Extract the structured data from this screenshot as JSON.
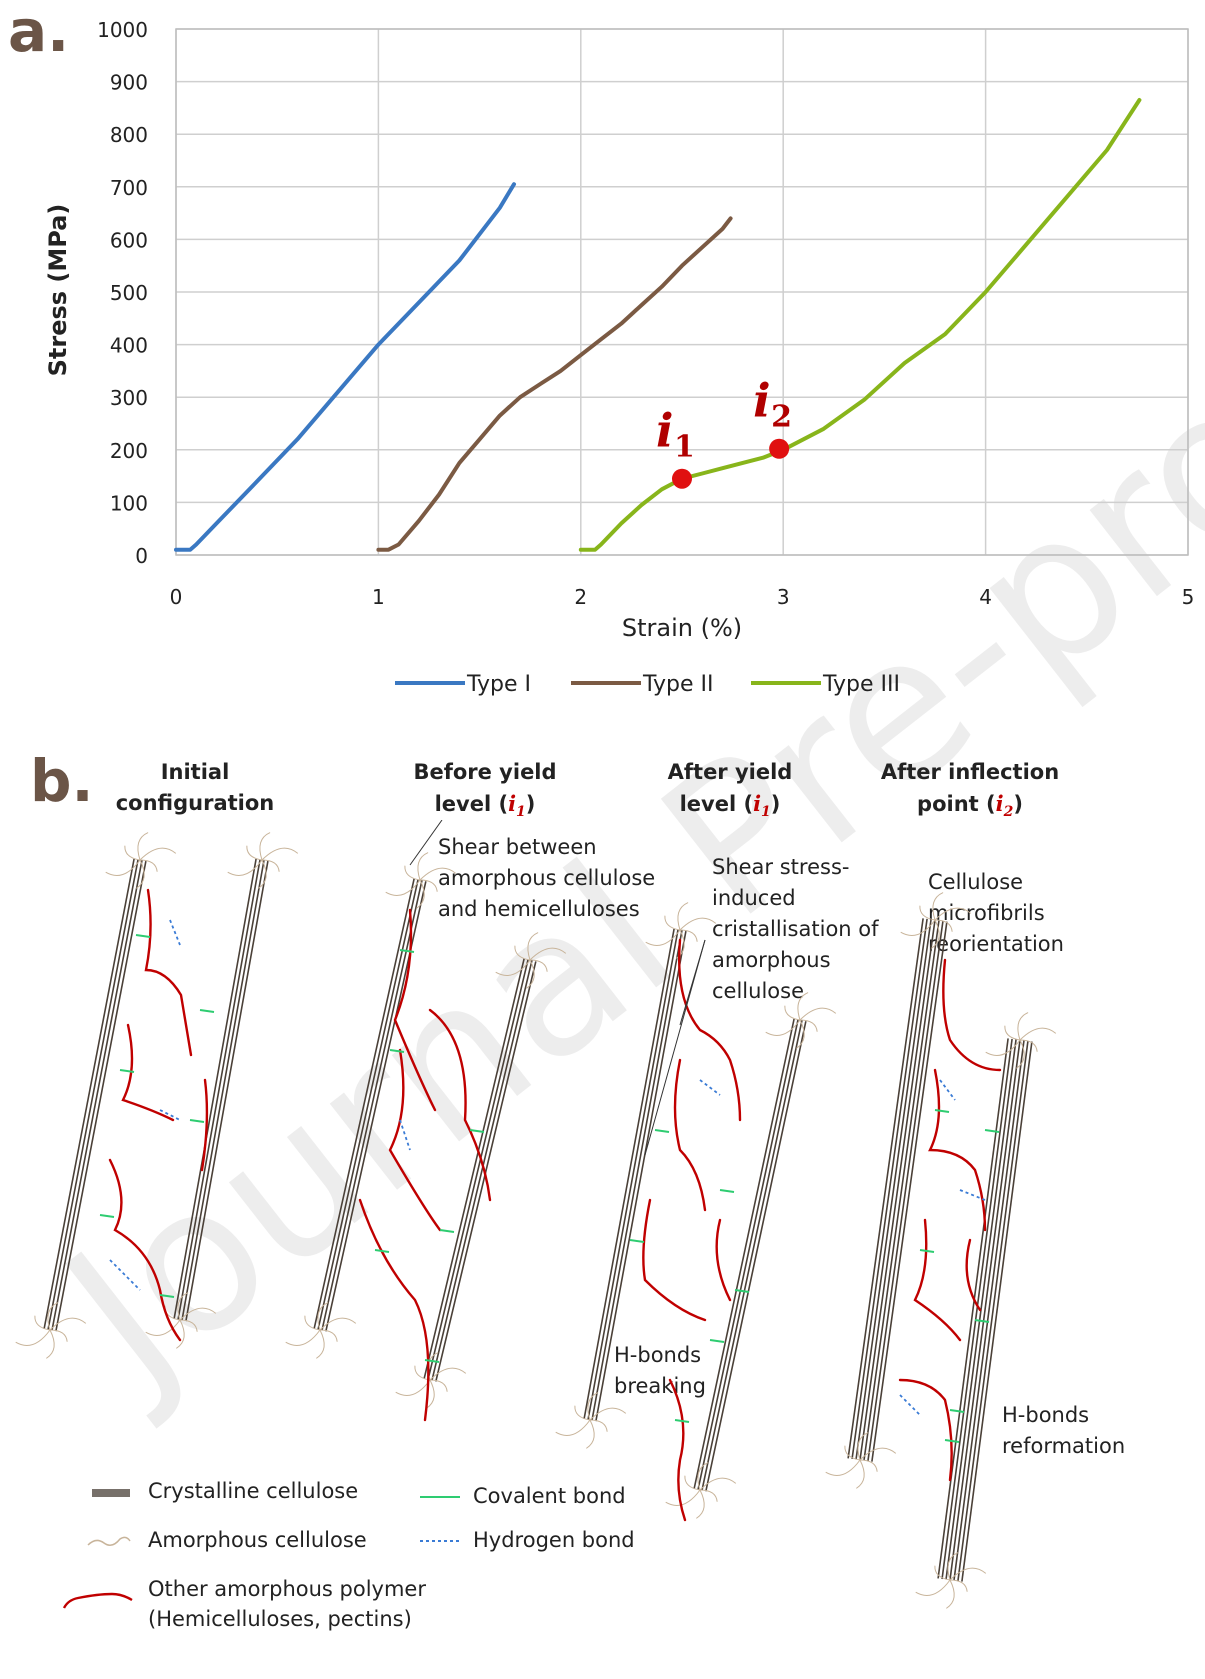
{
  "panel_a_letter": "a.",
  "panel_b_letter": "b.",
  "chart_data": {
    "type": "line",
    "title": "",
    "xlabel": "Strain (%)",
    "ylabel": "Stress (MPa)",
    "xlim": [
      0,
      5
    ],
    "ylim": [
      0,
      1000
    ],
    "x_ticks": [
      "0",
      "1",
      "2",
      "3",
      "4",
      "5"
    ],
    "y_ticks": [
      "0",
      "100",
      "200",
      "300",
      "400",
      "500",
      "600",
      "700",
      "800",
      "900",
      "1000"
    ],
    "grid": true,
    "legend_position": "bottom",
    "series": [
      {
        "name": "Type I",
        "color": "#3a78c2",
        "x": [
          0,
          0.07,
          0.1,
          0.2,
          0.4,
          0.6,
          0.8,
          1.0,
          1.2,
          1.4,
          1.6,
          1.67
        ],
        "y": [
          10,
          10,
          20,
          60,
          140,
          220,
          310,
          400,
          480,
          560,
          660,
          705
        ]
      },
      {
        "name": "Type II",
        "color": "#7b5a43",
        "x": [
          1.0,
          1.05,
          1.1,
          1.2,
          1.3,
          1.4,
          1.5,
          1.6,
          1.7,
          1.8,
          1.9,
          2.0,
          2.1,
          2.2,
          2.3,
          2.4,
          2.5,
          2.6,
          2.7,
          2.74
        ],
        "y": [
          10,
          10,
          20,
          65,
          115,
          175,
          220,
          265,
          300,
          325,
          350,
          380,
          410,
          440,
          475,
          510,
          550,
          585,
          620,
          640
        ]
      },
      {
        "name": "Type III",
        "color": "#88b51b",
        "x": [
          2.0,
          2.07,
          2.1,
          2.2,
          2.3,
          2.4,
          2.5,
          2.6,
          2.7,
          2.8,
          2.9,
          3.0,
          3.2,
          3.4,
          3.6,
          3.8,
          4.0,
          4.2,
          4.4,
          4.6,
          4.76
        ],
        "y": [
          10,
          10,
          20,
          60,
          95,
          125,
          145,
          155,
          165,
          175,
          185,
          200,
          240,
          295,
          365,
          420,
          500,
          590,
          680,
          770,
          865
        ]
      }
    ],
    "annotations": [
      {
        "label": "i",
        "subscript": "1",
        "x": 2.5,
        "y": 145,
        "color": "#e01010"
      },
      {
        "label": "i",
        "subscript": "2",
        "x": 2.98,
        "y": 202,
        "color": "#e01010"
      }
    ]
  },
  "stages": [
    {
      "line1": "Initial",
      "line2": "configuration",
      "symbol": "",
      "sub": "",
      "suffix": ""
    },
    {
      "line1": "Before yield",
      "line2": "level (",
      "symbol": "i",
      "sub": "1",
      "suffix": ")"
    },
    {
      "line1": "After yield",
      "line2": "level (",
      "symbol": "i",
      "sub": "1",
      "suffix": ")"
    },
    {
      "line1": "After inflection",
      "line2": "point (",
      "symbol": "i",
      "sub": "2",
      "suffix": ")"
    }
  ],
  "notes": {
    "shear": [
      "Shear between",
      "amorphous cellulose",
      "and hemicelluloses"
    ],
    "crystal": [
      "Shear stress-",
      "induced",
      "cristallisation of",
      "amorphous",
      "cellulose"
    ],
    "reorient": [
      "Cellulose",
      "microfibrils",
      "reorientation"
    ],
    "hbreak": [
      "H-bonds",
      "breaking"
    ],
    "hreform": [
      "H-bonds",
      "reformation"
    ]
  },
  "legend_b": {
    "crystalline": "Crystalline cellulose",
    "amorphous": "Amorphous cellulose",
    "other_1": "Other amorphous polymer",
    "other_2": "(Hemicelluloses, pectins)",
    "covalent": "Covalent bond",
    "hydrogen": "Hydrogen bond"
  },
  "colors": {
    "crystalline": "#4a4038",
    "amorphous": "#c8b49a",
    "polymer": "#c00000",
    "covalent": "#2ecc71",
    "hydrogen": "#3a7bd5"
  },
  "watermark": "Journal Pre-proofs"
}
